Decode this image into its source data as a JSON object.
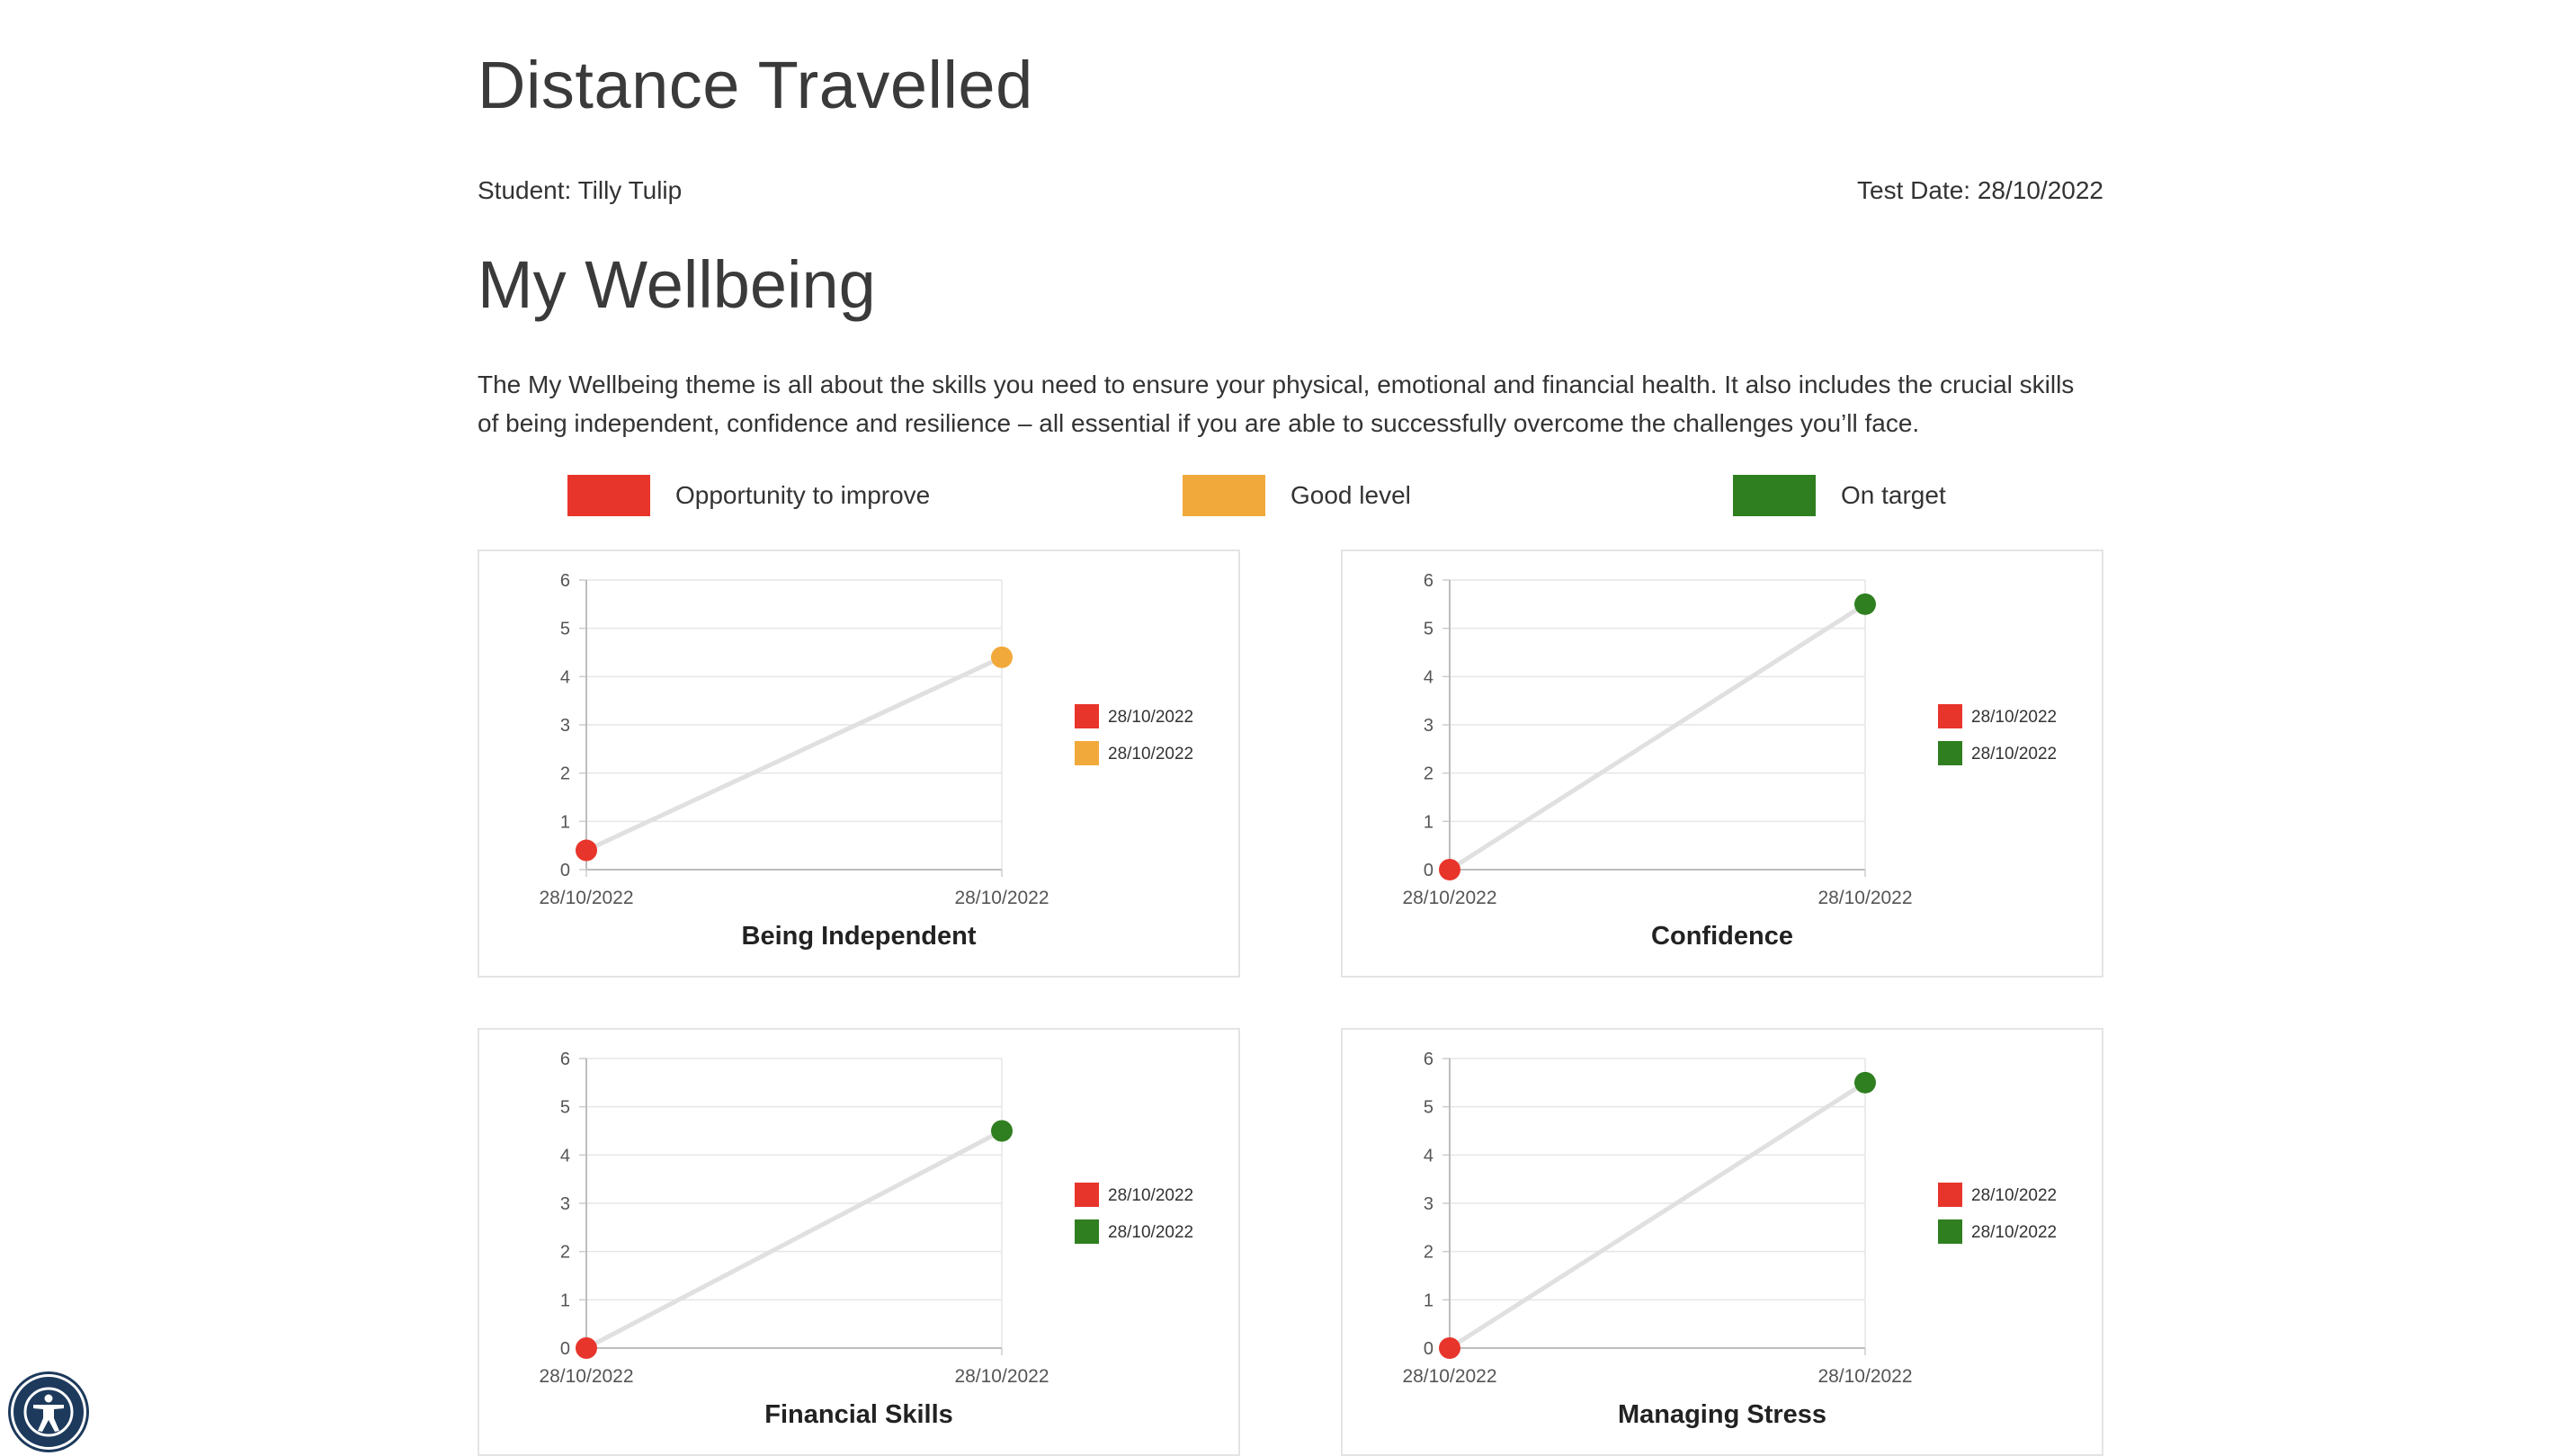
{
  "page": {
    "title": "Distance Travelled",
    "student": "Student: Tilly Tulip",
    "test_date": "Test Date: 28/10/2022"
  },
  "section": {
    "title": "My Wellbeing",
    "description": "The My Wellbeing theme is all about the skills you need to ensure your physical, emotional and financial health. It also includes the crucial skills of being independent, confidence and resilience – all essential if you are able to successfully overcome the challenges you’ll face."
  },
  "key": [
    {
      "label": "Opportunity to improve",
      "color": "#e8352b"
    },
    {
      "label": "Good level",
      "color": "#f2a93b"
    },
    {
      "label": "On target",
      "color": "#2f7f20"
    }
  ],
  "accessibility": {
    "icon": "accessibility-icon"
  },
  "chart_data": [
    {
      "type": "line",
      "title": "Being Independent",
      "x": [
        "28/10/2022",
        "28/10/2022"
      ],
      "values": [
        0.4,
        4.4
      ],
      "point_colors": [
        "#e8352b",
        "#f2a93b"
      ],
      "legend": [
        "28/10/2022",
        "28/10/2022"
      ],
      "ylim": [
        0,
        6
      ],
      "yticks": [
        "0",
        "1",
        "2",
        "3",
        "4",
        "5",
        "6"
      ],
      "grid": true,
      "legend_position": "right"
    },
    {
      "type": "line",
      "title": "Confidence",
      "x": [
        "28/10/2022",
        "28/10/2022"
      ],
      "values": [
        0,
        5.5
      ],
      "point_colors": [
        "#e8352b",
        "#2f7f20"
      ],
      "legend": [
        "28/10/2022",
        "28/10/2022"
      ],
      "ylim": [
        0,
        6
      ],
      "yticks": [
        "0",
        "1",
        "2",
        "3",
        "4",
        "5",
        "6"
      ],
      "grid": true,
      "legend_position": "right"
    },
    {
      "type": "line",
      "title": "Financial Skills",
      "x": [
        "28/10/2022",
        "28/10/2022"
      ],
      "values": [
        0,
        4.5
      ],
      "point_colors": [
        "#e8352b",
        "#2f7f20"
      ],
      "legend": [
        "28/10/2022",
        "28/10/2022"
      ],
      "ylim": [
        0,
        6
      ],
      "yticks": [
        "0",
        "1",
        "2",
        "3",
        "4",
        "5",
        "6"
      ],
      "grid": true,
      "legend_position": "right"
    },
    {
      "type": "line",
      "title": "Managing Stress",
      "x": [
        "28/10/2022",
        "28/10/2022"
      ],
      "values": [
        0,
        5.5
      ],
      "point_colors": [
        "#e8352b",
        "#2f7f20"
      ],
      "legend": [
        "28/10/2022",
        "28/10/2022"
      ],
      "ylim": [
        0,
        6
      ],
      "yticks": [
        "0",
        "1",
        "2",
        "3",
        "4",
        "5",
        "6"
      ],
      "grid": true,
      "legend_position": "right"
    }
  ]
}
